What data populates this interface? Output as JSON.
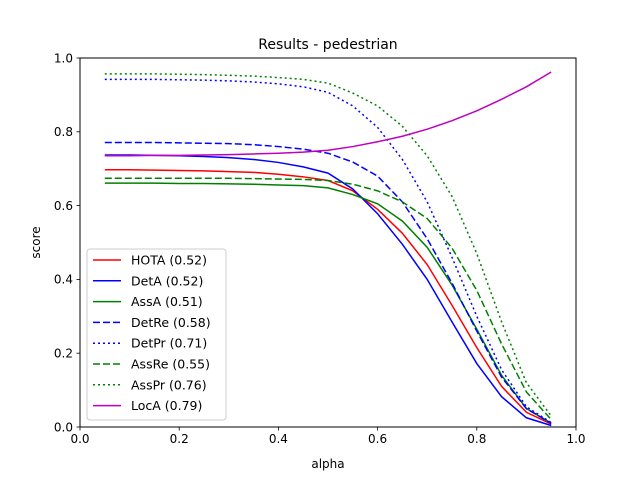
{
  "chart_data": {
    "type": "line",
    "title": "Results - pedestrian",
    "xlabel": "alpha",
    "ylabel": "score",
    "xlim": [
      0.0,
      1.0
    ],
    "ylim": [
      0.0,
      1.0
    ],
    "xticks": [
      "0.0",
      "0.2",
      "0.4",
      "0.6",
      "0.8",
      "1.0"
    ],
    "yticks": [
      "0.0",
      "0.2",
      "0.4",
      "0.6",
      "0.8",
      "1.0"
    ],
    "grid": false,
    "legend_position": "lower-left",
    "x": [
      0.05,
      0.1,
      0.15,
      0.2,
      0.25,
      0.3,
      0.35,
      0.4,
      0.45,
      0.5,
      0.55,
      0.6,
      0.65,
      0.7,
      0.75,
      0.8,
      0.85,
      0.9,
      0.95
    ],
    "series": [
      {
        "name": "HOTA (0.52)",
        "color": "#ff0000",
        "style": "solid",
        "values": [
          0.697,
          0.697,
          0.696,
          0.695,
          0.694,
          0.692,
          0.69,
          0.685,
          0.678,
          0.668,
          0.64,
          0.59,
          0.525,
          0.44,
          0.33,
          0.215,
          0.11,
          0.04,
          0.008
        ]
      },
      {
        "name": "DetA (0.52)",
        "color": "#0000ff",
        "style": "solid",
        "values": [
          0.737,
          0.737,
          0.736,
          0.735,
          0.733,
          0.73,
          0.725,
          0.717,
          0.705,
          0.688,
          0.645,
          0.578,
          0.495,
          0.4,
          0.285,
          0.172,
          0.082,
          0.025,
          0.004
        ]
      },
      {
        "name": "AssA (0.51)",
        "color": "#008000",
        "style": "solid",
        "values": [
          0.661,
          0.661,
          0.661,
          0.66,
          0.66,
          0.659,
          0.658,
          0.656,
          0.654,
          0.648,
          0.63,
          0.605,
          0.558,
          0.487,
          0.385,
          0.265,
          0.14,
          0.05,
          0.01
        ]
      },
      {
        "name": "DetRe (0.58)",
        "color": "#0000ff",
        "style": "dashed",
        "values": [
          0.771,
          0.771,
          0.771,
          0.77,
          0.769,
          0.768,
          0.765,
          0.76,
          0.753,
          0.742,
          0.718,
          0.68,
          0.61,
          0.51,
          0.39,
          0.26,
          0.135,
          0.05,
          0.01
        ]
      },
      {
        "name": "DetPr (0.71)",
        "color": "#0000ff",
        "style": "dotted",
        "values": [
          0.942,
          0.942,
          0.942,
          0.941,
          0.94,
          0.938,
          0.935,
          0.93,
          0.922,
          0.907,
          0.87,
          0.812,
          0.725,
          0.61,
          0.46,
          0.3,
          0.155,
          0.055,
          0.012
        ]
      },
      {
        "name": "AssRe (0.55)",
        "color": "#008000",
        "style": "dashed",
        "values": [
          0.674,
          0.674,
          0.674,
          0.674,
          0.674,
          0.674,
          0.673,
          0.672,
          0.671,
          0.668,
          0.658,
          0.64,
          0.61,
          0.565,
          0.485,
          0.37,
          0.225,
          0.095,
          0.02
        ]
      },
      {
        "name": "AssPr (0.76)",
        "color": "#008000",
        "style": "dotted",
        "values": [
          0.957,
          0.957,
          0.957,
          0.956,
          0.955,
          0.953,
          0.951,
          0.947,
          0.942,
          0.932,
          0.905,
          0.87,
          0.815,
          0.735,
          0.625,
          0.47,
          0.285,
          0.12,
          0.03
        ]
      },
      {
        "name": "LocA (0.79)",
        "color": "#bf00bf",
        "style": "solid",
        "values": [
          0.735,
          0.735,
          0.736,
          0.736,
          0.737,
          0.738,
          0.74,
          0.742,
          0.745,
          0.75,
          0.76,
          0.773,
          0.788,
          0.807,
          0.83,
          0.857,
          0.888,
          0.922,
          0.962
        ]
      }
    ]
  }
}
